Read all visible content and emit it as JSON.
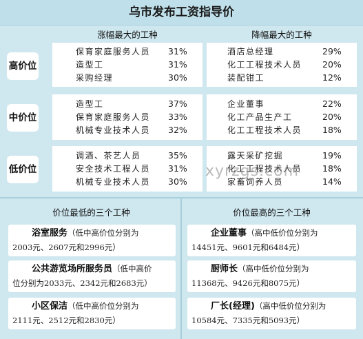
{
  "title": "乌市发布工资指导价",
  "headers": {
    "rise": "涨幅最大的工种",
    "fall": "降幅最大的工种"
  },
  "tiers": [
    {
      "label": "高价位",
      "rise": [
        {
          "job": "保育家庭服务人员",
          "pct": "31%"
        },
        {
          "job": "造型工",
          "pct": "31%"
        },
        {
          "job": "采购经理",
          "pct": "30%"
        }
      ],
      "fall": [
        {
          "job": "酒店总经理",
          "pct": "29%"
        },
        {
          "job": "化工工程技术人员",
          "pct": "20%"
        },
        {
          "job": "装配钳工",
          "pct": "12%"
        }
      ]
    },
    {
      "label": "中价位",
      "rise": [
        {
          "job": "造型工",
          "pct": "37%"
        },
        {
          "job": "保育家庭服务人员",
          "pct": "33%"
        },
        {
          "job": "机械专业技术人员",
          "pct": "32%"
        }
      ],
      "fall": [
        {
          "job": "企业董事",
          "pct": "22%"
        },
        {
          "job": "化工产品生产工",
          "pct": "20%"
        },
        {
          "job": "化工工程技术人员",
          "pct": "18%"
        }
      ]
    },
    {
      "label": "低价位",
      "rise": [
        {
          "job": "调酒、茶艺人员",
          "pct": "35%"
        },
        {
          "job": "安全技术工程人员",
          "pct": "31%"
        },
        {
          "job": "机械专业技术人员",
          "pct": "30%"
        }
      ],
      "fall": [
        {
          "job": "露天采矿挖掘",
          "pct": "19%"
        },
        {
          "job": "化工工程技术人员",
          "pct": "18%"
        },
        {
          "job": "家畜饲养人员",
          "pct": "14%"
        }
      ]
    }
  ],
  "bottom": {
    "lowest_header": "价位最低的三个工种",
    "highest_header": "价位最高的三个工种",
    "lowest": [
      {
        "name": "浴室服务",
        "line1": "（低中高价位分别为",
        "line2": "2003元、2607元和2996元）"
      },
      {
        "name": "公共游览场所服务员",
        "line1": "（低中高价",
        "line2": "位分别为2033元、2342元和2683元）"
      },
      {
        "name": "小区保洁",
        "line1": "（低中高价位分别为",
        "line2": "2111元、2512元和2830元）"
      }
    ],
    "highest": [
      {
        "name": "企业董事",
        "line1": "（高中低价位分别为",
        "line2": "14451元、9601元和6484元）"
      },
      {
        "name": "厨师长",
        "line1": "（高中低价位分别为",
        "line2": "11368元、9426元和8075元）"
      },
      {
        "name": "厂长(经理)",
        "line1": "（高中低价位分别为",
        "line2": "10584元、7335元和5093元）"
      }
    ]
  },
  "watermark": "xyrzgs.com",
  "colors": {
    "frame": "#cfe7ef",
    "title_bg": "#bfe0ea",
    "cell": "#ffffff"
  }
}
